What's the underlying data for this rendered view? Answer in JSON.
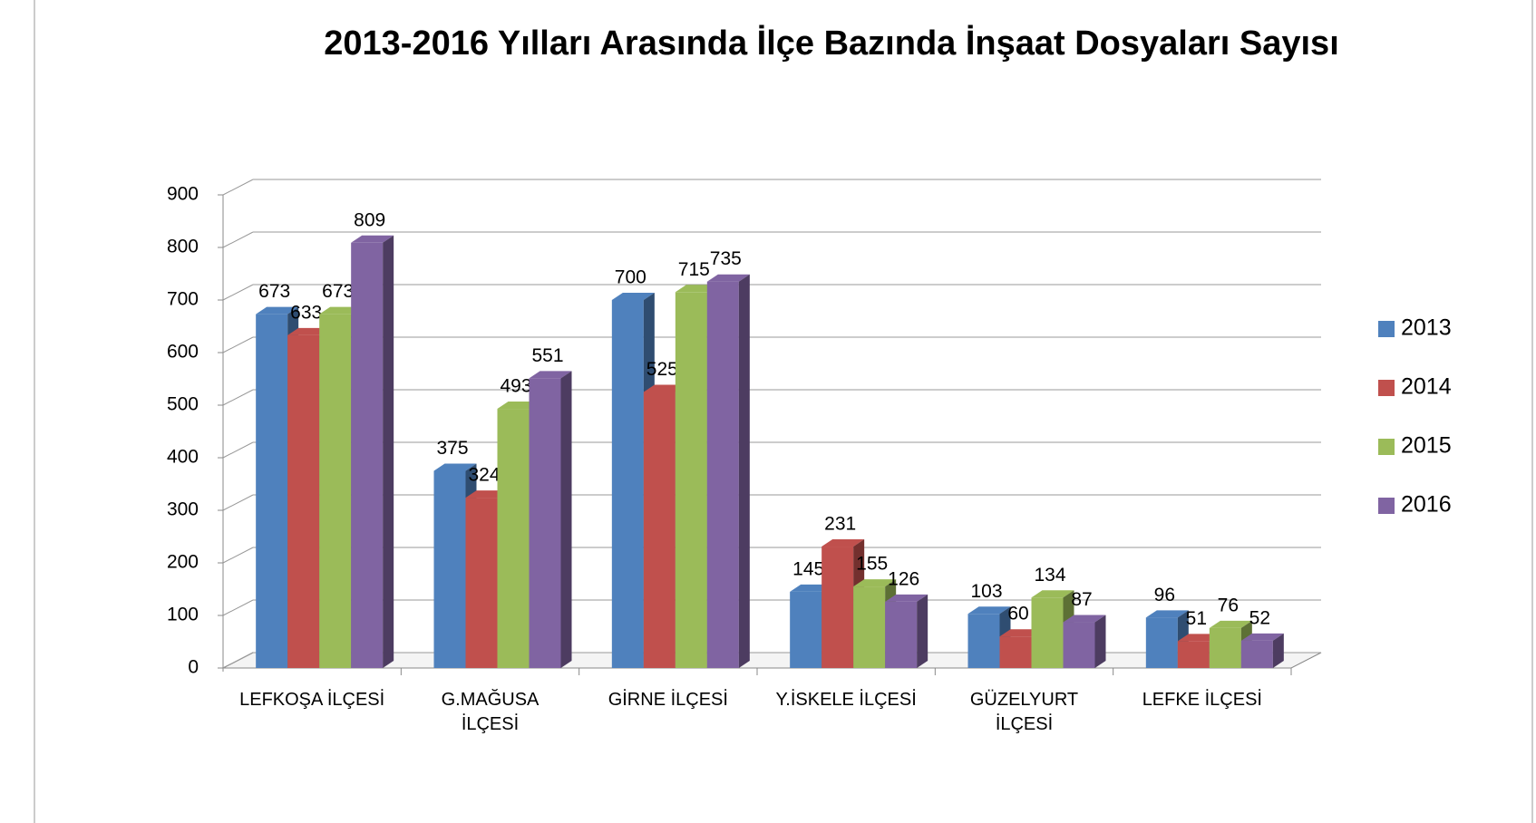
{
  "chart_data": {
    "type": "bar3d",
    "title": "2013-2016 Yılları Arasında İlçe Bazında İnşaat Dosyaları Sayısı",
    "categories": [
      "LEFKOŞA İLÇESİ",
      "G.MAĞUSA İLÇESİ",
      "GİRNE İLÇESİ",
      "Y.İSKELE İLÇESİ",
      "GÜZELYURT İLÇESİ",
      "LEFKE İLÇESİ"
    ],
    "series": [
      {
        "name": "2013",
        "color": "#4f81bd",
        "values": [
          673,
          375,
          700,
          145,
          103,
          96
        ]
      },
      {
        "name": "2014",
        "color": "#c0504d",
        "values": [
          633,
          324,
          525,
          231,
          60,
          51
        ]
      },
      {
        "name": "2015",
        "color": "#9bbb59",
        "values": [
          673,
          493,
          715,
          155,
          134,
          76
        ]
      },
      {
        "name": "2016",
        "color": "#8064a2",
        "values": [
          809,
          551,
          735,
          126,
          87,
          52
        ]
      }
    ],
    "ylim": [
      0,
      900
    ],
    "yticks": [
      0,
      100,
      200,
      300,
      400,
      500,
      600,
      700,
      800,
      900
    ],
    "grid": true,
    "legend": "right"
  }
}
